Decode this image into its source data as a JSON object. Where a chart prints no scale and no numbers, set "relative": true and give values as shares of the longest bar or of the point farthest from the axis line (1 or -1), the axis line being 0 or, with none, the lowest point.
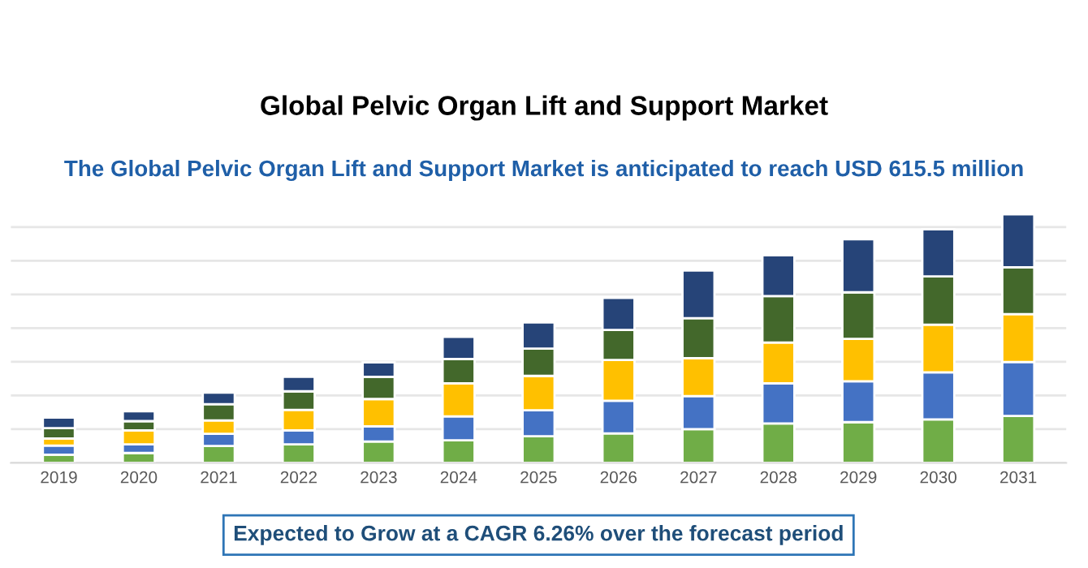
{
  "chart_data": {
    "type": "bar",
    "title": "Global Pelvic Organ Lift and Support Market",
    "subtitle": "The Global Pelvic Organ Lift and Support Market is anticipated to reach USD 615.5 million",
    "annotations": [
      "Expected to Grow at a CAGR 6.26% over the forecast period"
    ],
    "categories": [
      "2019",
      "2020",
      "2021",
      "2022",
      "2023",
      "2024",
      "2025",
      "2026",
      "2027",
      "2028",
      "2029",
      "2030",
      "2031"
    ],
    "stacked": true,
    "relative": true,
    "grid": "y",
    "legend": false,
    "series": [
      {
        "color": "#70ad47",
        "values": [
          0.033,
          0.04,
          0.068,
          0.075,
          0.086,
          0.091,
          0.107,
          0.119,
          0.136,
          0.159,
          0.164,
          0.175,
          0.189
        ]
      },
      {
        "color": "#4472c4",
        "values": [
          0.037,
          0.035,
          0.049,
          0.056,
          0.061,
          0.096,
          0.105,
          0.131,
          0.133,
          0.161,
          0.164,
          0.189,
          0.217
        ]
      },
      {
        "color": "#ffc000",
        "values": [
          0.028,
          0.056,
          0.054,
          0.082,
          0.11,
          0.133,
          0.138,
          0.164,
          0.152,
          0.164,
          0.171,
          0.192,
          0.192
        ]
      },
      {
        "color": "#43682b",
        "values": [
          0.042,
          0.037,
          0.065,
          0.075,
          0.089,
          0.098,
          0.11,
          0.121,
          0.161,
          0.187,
          0.187,
          0.194,
          0.189
        ]
      },
      {
        "color": "#264478",
        "values": [
          0.042,
          0.04,
          0.047,
          0.058,
          0.058,
          0.089,
          0.105,
          0.129,
          0.192,
          0.164,
          0.213,
          0.189,
          0.213
        ]
      }
    ]
  }
}
